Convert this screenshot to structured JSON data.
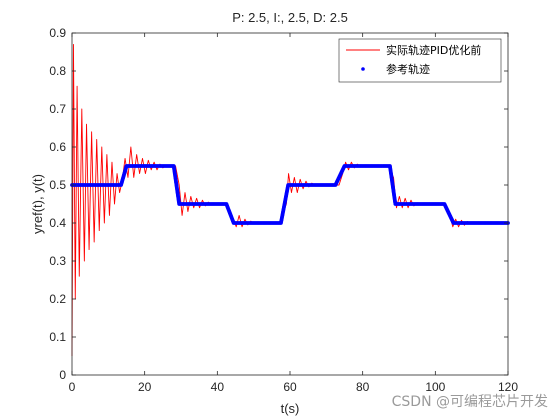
{
  "chart_data": {
    "type": "line",
    "title": "P: 2.5, I:, 2.5, D: 2.5",
    "xlabel": "t(s)",
    "ylabel": "yref(t), y(t)",
    "xlim": [
      0,
      120
    ],
    "ylim": [
      0,
      0.9
    ],
    "xticks": [
      0,
      20,
      40,
      60,
      80,
      100,
      120
    ],
    "yticks": [
      0,
      0.1,
      0.2,
      0.3,
      0.4,
      0.5,
      0.6,
      0.7,
      0.8,
      0.9
    ],
    "legend_position": "top-right",
    "grid": false,
    "series": [
      {
        "name": "实际轨迹PID优化前",
        "color": "#ff0000",
        "style": "line",
        "x": [
          0,
          0.4,
          0.9,
          1.4,
          2.0,
          2.7,
          3.4,
          4.0,
          4.7,
          5.4,
          6.1,
          6.8,
          7.5,
          8.2,
          8.9,
          9.6,
          10.3,
          11.0,
          11.7,
          12.4,
          13.1,
          13.8,
          14.6,
          15.4,
          16.2,
          17.0,
          17.8,
          18.6,
          19.4,
          20.2,
          21.0,
          21.8,
          22.6,
          23.4,
          24.2,
          25.0,
          26.0,
          27.0,
          28.5,
          29.5,
          30.3,
          31.1,
          31.9,
          32.7,
          33.5,
          34.3,
          35.1,
          35.9,
          36.7,
          37.5,
          38.5,
          40.0,
          41.5,
          42.5,
          44.0,
          45.2,
          46.0,
          46.8,
          47.6,
          48.4,
          49.2,
          50.0,
          51.0,
          52.5,
          55.0,
          57.0,
          59.0,
          59.6,
          60.4,
          61.2,
          62.0,
          62.8,
          63.6,
          64.4,
          65.2,
          66.0,
          67.0,
          68.5,
          71.0,
          73.5,
          74.5,
          75.3,
          76.1,
          76.9,
          77.7,
          78.5,
          79.5,
          81.0,
          84.0,
          87.0,
          88.5,
          89.3,
          90.1,
          90.9,
          91.7,
          92.5,
          93.3,
          94.1,
          95.0,
          96.5,
          99.0,
          102.5,
          104.0,
          104.8,
          105.6,
          106.4,
          107.2,
          108.0,
          108.8,
          109.8,
          111.5,
          114.0,
          117.0,
          120.0
        ],
        "y": [
          0.05,
          0.87,
          0.2,
          0.76,
          0.26,
          0.7,
          0.3,
          0.66,
          0.33,
          0.64,
          0.35,
          0.62,
          0.38,
          0.6,
          0.4,
          0.58,
          0.42,
          0.56,
          0.45,
          0.53,
          0.48,
          0.51,
          0.57,
          0.52,
          0.6,
          0.52,
          0.58,
          0.53,
          0.57,
          0.53,
          0.565,
          0.54,
          0.56,
          0.54,
          0.555,
          0.545,
          0.552,
          0.548,
          0.55,
          0.5,
          0.42,
          0.48,
          0.43,
          0.47,
          0.44,
          0.465,
          0.44,
          0.46,
          0.445,
          0.455,
          0.449,
          0.45,
          0.451,
          0.45,
          0.42,
          0.39,
          0.42,
          0.39,
          0.41,
          0.395,
          0.405,
          0.398,
          0.401,
          0.4,
          0.4,
          0.4,
          0.45,
          0.53,
          0.48,
          0.52,
          0.48,
          0.515,
          0.49,
          0.51,
          0.495,
          0.505,
          0.499,
          0.5,
          0.5,
          0.5,
          0.53,
          0.56,
          0.54,
          0.56,
          0.545,
          0.555,
          0.549,
          0.55,
          0.55,
          0.55,
          0.52,
          0.44,
          0.47,
          0.44,
          0.465,
          0.44,
          0.46,
          0.445,
          0.453,
          0.45,
          0.45,
          0.45,
          0.42,
          0.39,
          0.41,
          0.39,
          0.407,
          0.394,
          0.404,
          0.398,
          0.4,
          0.4,
          0.4,
          0.4
        ]
      },
      {
        "name": "参考轨迹",
        "color": "#0000ff",
        "style": "markers",
        "x": [
          0,
          13.5,
          15.0,
          28.0,
          29.5,
          42.5,
          44.5,
          57.5,
          59.5,
          72.5,
          75.0,
          87.5,
          89.0,
          102.5,
          105.0,
          120.0
        ],
        "y": [
          0.5,
          0.5,
          0.55,
          0.55,
          0.45,
          0.45,
          0.4,
          0.4,
          0.5,
          0.5,
          0.55,
          0.55,
          0.45,
          0.45,
          0.4,
          0.4
        ]
      }
    ]
  },
  "watermark": "CSDN @可编程芯片开发"
}
